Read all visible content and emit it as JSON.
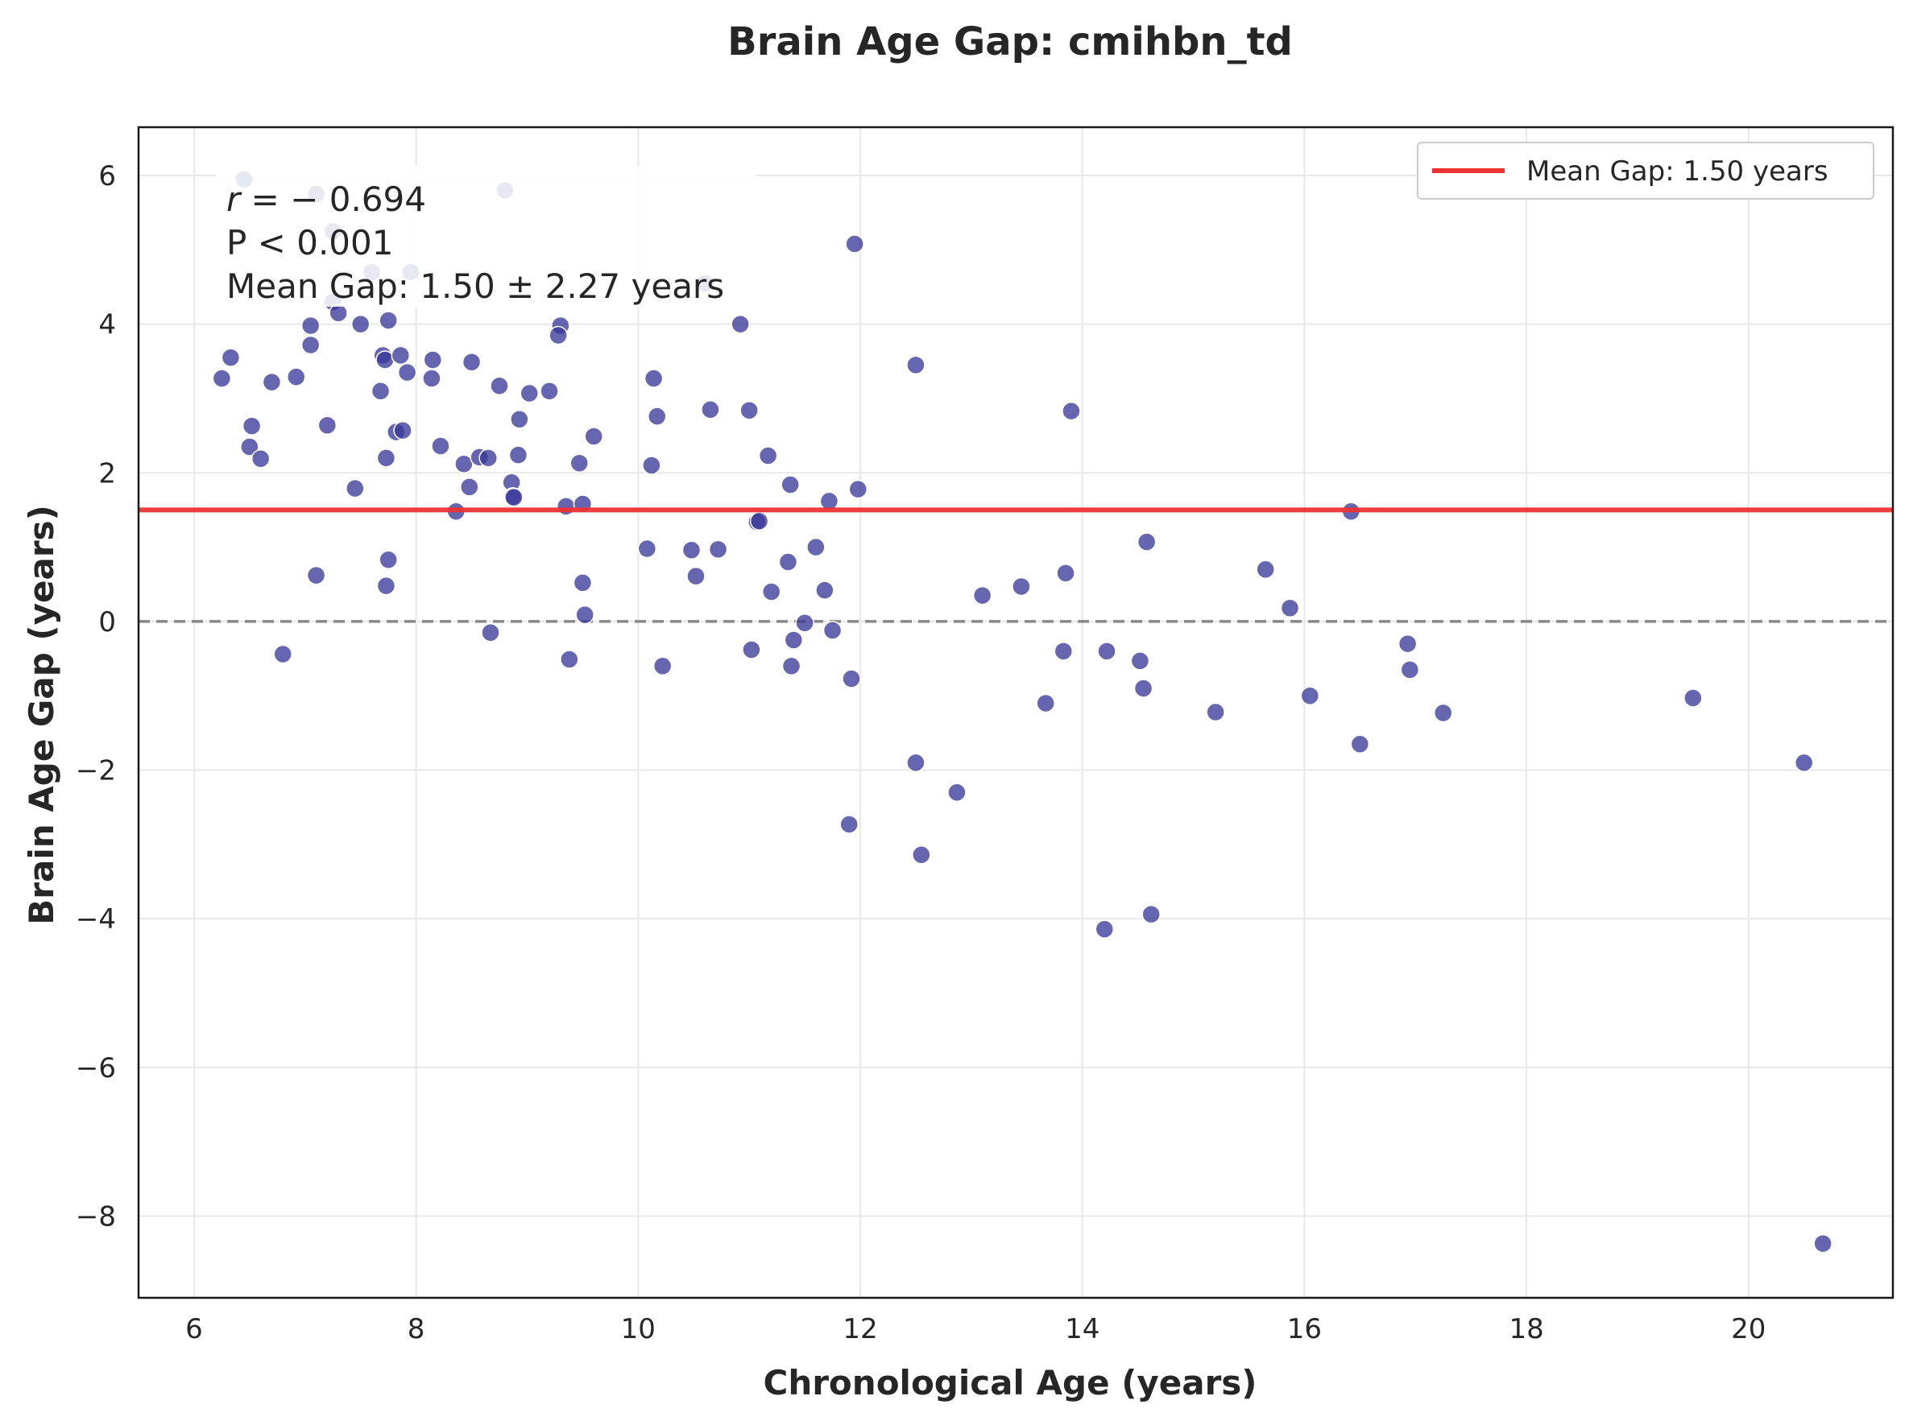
{
  "chart_data": {
    "type": "scatter",
    "title": "Brain Age Gap: cmihbn_td",
    "xlabel": "Chronological Age (years)",
    "ylabel": "Brain Age Gap (years)",
    "xlim": [
      5.5,
      21.3
    ],
    "ylim": [
      -9.1,
      6.65
    ],
    "xticks": [
      6,
      8,
      10,
      12,
      14,
      16,
      18,
      20
    ],
    "yticks": [
      -8,
      -6,
      -4,
      -2,
      0,
      2,
      4,
      6
    ],
    "xtick_labels": [
      "6",
      "8",
      "10",
      "12",
      "14",
      "16",
      "18",
      "20"
    ],
    "ytick_labels": [
      "−8",
      "−6",
      "−4",
      "−2",
      "0",
      "2",
      "4",
      "6"
    ],
    "grid": true,
    "zero_line": {
      "y": 0,
      "style": "dashed",
      "color": "#888888"
    },
    "mean_line": {
      "y": 1.5,
      "color": "#ee3333"
    },
    "legend": {
      "position": "top-right",
      "entries": [
        {
          "label": "Mean Gap: 1.50 years",
          "color": "#ee3333"
        }
      ]
    },
    "stats": {
      "r_label": "r",
      "r_value": " = − 0.694",
      "p_text": "P < 0.001",
      "mean_text": "Mean Gap: 1.50 ± 2.27 years"
    },
    "point_color": "#3a3a9a",
    "series": [
      {
        "points": [
          [
            6.45,
            5.95
          ],
          [
            7.1,
            5.75
          ],
          [
            8.8,
            5.8
          ],
          [
            7.25,
            5.25
          ],
          [
            7.6,
            4.7
          ],
          [
            7.95,
            4.7
          ],
          [
            10.6,
            4.55
          ],
          [
            7.25,
            4.3
          ],
          [
            7.3,
            4.15
          ],
          [
            7.05,
            3.98
          ],
          [
            7.5,
            4.0
          ],
          [
            7.75,
            4.05
          ],
          [
            9.3,
            3.98
          ],
          [
            9.28,
            3.85
          ],
          [
            10.92,
            4.0
          ],
          [
            11.95,
            5.08
          ],
          [
            6.25,
            3.27
          ],
          [
            6.33,
            3.55
          ],
          [
            6.7,
            3.22
          ],
          [
            6.92,
            3.29
          ],
          [
            7.05,
            3.72
          ],
          [
            7.68,
            3.1
          ],
          [
            7.7,
            3.58
          ],
          [
            7.72,
            3.52
          ],
          [
            7.86,
            3.58
          ],
          [
            7.92,
            3.35
          ],
          [
            8.15,
            3.52
          ],
          [
            8.14,
            3.27
          ],
          [
            8.5,
            3.49
          ],
          [
            8.75,
            3.17
          ],
          [
            9.02,
            3.07
          ],
          [
            9.2,
            3.1
          ],
          [
            10.14,
            3.27
          ],
          [
            10.17,
            2.76
          ],
          [
            10.65,
            2.85
          ],
          [
            11.0,
            2.84
          ],
          [
            12.5,
            3.45
          ],
          [
            13.9,
            2.83
          ],
          [
            6.52,
            2.63
          ],
          [
            6.5,
            2.35
          ],
          [
            6.6,
            2.19
          ],
          [
            7.2,
            2.64
          ],
          [
            7.82,
            2.55
          ],
          [
            7.88,
            2.57
          ],
          [
            7.73,
            2.2
          ],
          [
            8.22,
            2.36
          ],
          [
            8.43,
            2.12
          ],
          [
            8.57,
            2.21
          ],
          [
            8.65,
            2.2
          ],
          [
            8.93,
            2.72
          ],
          [
            8.92,
            2.24
          ],
          [
            9.6,
            2.49
          ],
          [
            9.47,
            2.13
          ],
          [
            10.12,
            2.1
          ],
          [
            11.17,
            2.23
          ],
          [
            11.37,
            1.84
          ],
          [
            11.98,
            1.78
          ],
          [
            11.72,
            1.62
          ],
          [
            7.45,
            1.79
          ],
          [
            8.48,
            1.81
          ],
          [
            8.86,
            1.87
          ],
          [
            8.87,
            1.68
          ],
          [
            8.88,
            1.67
          ],
          [
            9.35,
            1.55
          ],
          [
            9.5,
            1.58
          ],
          [
            8.36,
            1.48
          ],
          [
            16.42,
            1.48
          ],
          [
            11.07,
            1.34
          ],
          [
            11.09,
            1.35
          ],
          [
            14.58,
            1.07
          ],
          [
            10.08,
            0.98
          ],
          [
            10.48,
            0.96
          ],
          [
            10.72,
            0.97
          ],
          [
            11.6,
            1.0
          ],
          [
            11.35,
            0.8
          ],
          [
            7.75,
            0.83
          ],
          [
            7.1,
            0.62
          ],
          [
            10.52,
            0.61
          ],
          [
            13.85,
            0.65
          ],
          [
            15.65,
            0.7
          ],
          [
            7.73,
            0.48
          ],
          [
            9.5,
            0.52
          ],
          [
            11.2,
            0.4
          ],
          [
            11.68,
            0.42
          ],
          [
            13.45,
            0.47
          ],
          [
            13.1,
            0.35
          ],
          [
            15.87,
            0.18
          ],
          [
            9.52,
            0.09
          ],
          [
            11.5,
            -0.02
          ],
          [
            8.67,
            -0.15
          ],
          [
            11.75,
            -0.12
          ],
          [
            11.4,
            -0.25
          ],
          [
            16.93,
            -0.3
          ],
          [
            6.8,
            -0.44
          ],
          [
            9.38,
            -0.51
          ],
          [
            11.02,
            -0.38
          ],
          [
            13.83,
            -0.4
          ],
          [
            14.22,
            -0.4
          ],
          [
            14.52,
            -0.53
          ],
          [
            10.22,
            -0.6
          ],
          [
            11.38,
            -0.6
          ],
          [
            16.95,
            -0.65
          ],
          [
            11.92,
            -0.77
          ],
          [
            14.55,
            -0.9
          ],
          [
            16.05,
            -1.0
          ],
          [
            19.5,
            -1.03
          ],
          [
            13.67,
            -1.1
          ],
          [
            15.2,
            -1.22
          ],
          [
            17.25,
            -1.23
          ],
          [
            16.5,
            -1.65
          ],
          [
            20.5,
            -1.9
          ],
          [
            12.5,
            -1.9
          ],
          [
            12.87,
            -2.3
          ],
          [
            11.9,
            -2.73
          ],
          [
            12.55,
            -3.14
          ],
          [
            14.62,
            -3.94
          ],
          [
            14.2,
            -4.14
          ],
          [
            20.67,
            -8.37
          ]
        ]
      }
    ]
  }
}
